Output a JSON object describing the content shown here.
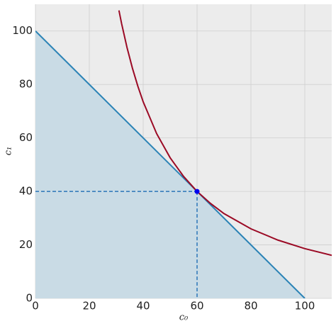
{
  "chart_data": {
    "type": "line",
    "xlabel": "c₀",
    "ylabel": "c₁",
    "xlim": [
      0,
      110
    ],
    "ylim": [
      0,
      110
    ],
    "xticks": [
      0,
      20,
      40,
      60,
      80,
      100
    ],
    "yticks": [
      0,
      20,
      40,
      60,
      80,
      100
    ],
    "grid": true,
    "series": [
      {
        "x": [
          0,
          100
        ],
        "values": [
          100,
          0
        ],
        "color": "#2b83b6",
        "fill": "#c9dbe5"
      },
      {
        "x": [
          31,
          32,
          34,
          36,
          38,
          40,
          45,
          50,
          55,
          60,
          65,
          70,
          80,
          90,
          100,
          110
        ],
        "values": [
          107.7,
          102.7,
          93.8,
          86.1,
          79.4,
          73.5,
          61.6,
          52.6,
          45.6,
          40.0,
          35.5,
          31.7,
          26.0,
          21.8,
          18.6,
          16.1
        ],
        "color": "#9b0a25"
      },
      {
        "x": [
          60
        ],
        "values": [
          40
        ],
        "color": "#0000ee",
        "marker": true,
        "guides": "#2a75b8"
      }
    ]
  }
}
